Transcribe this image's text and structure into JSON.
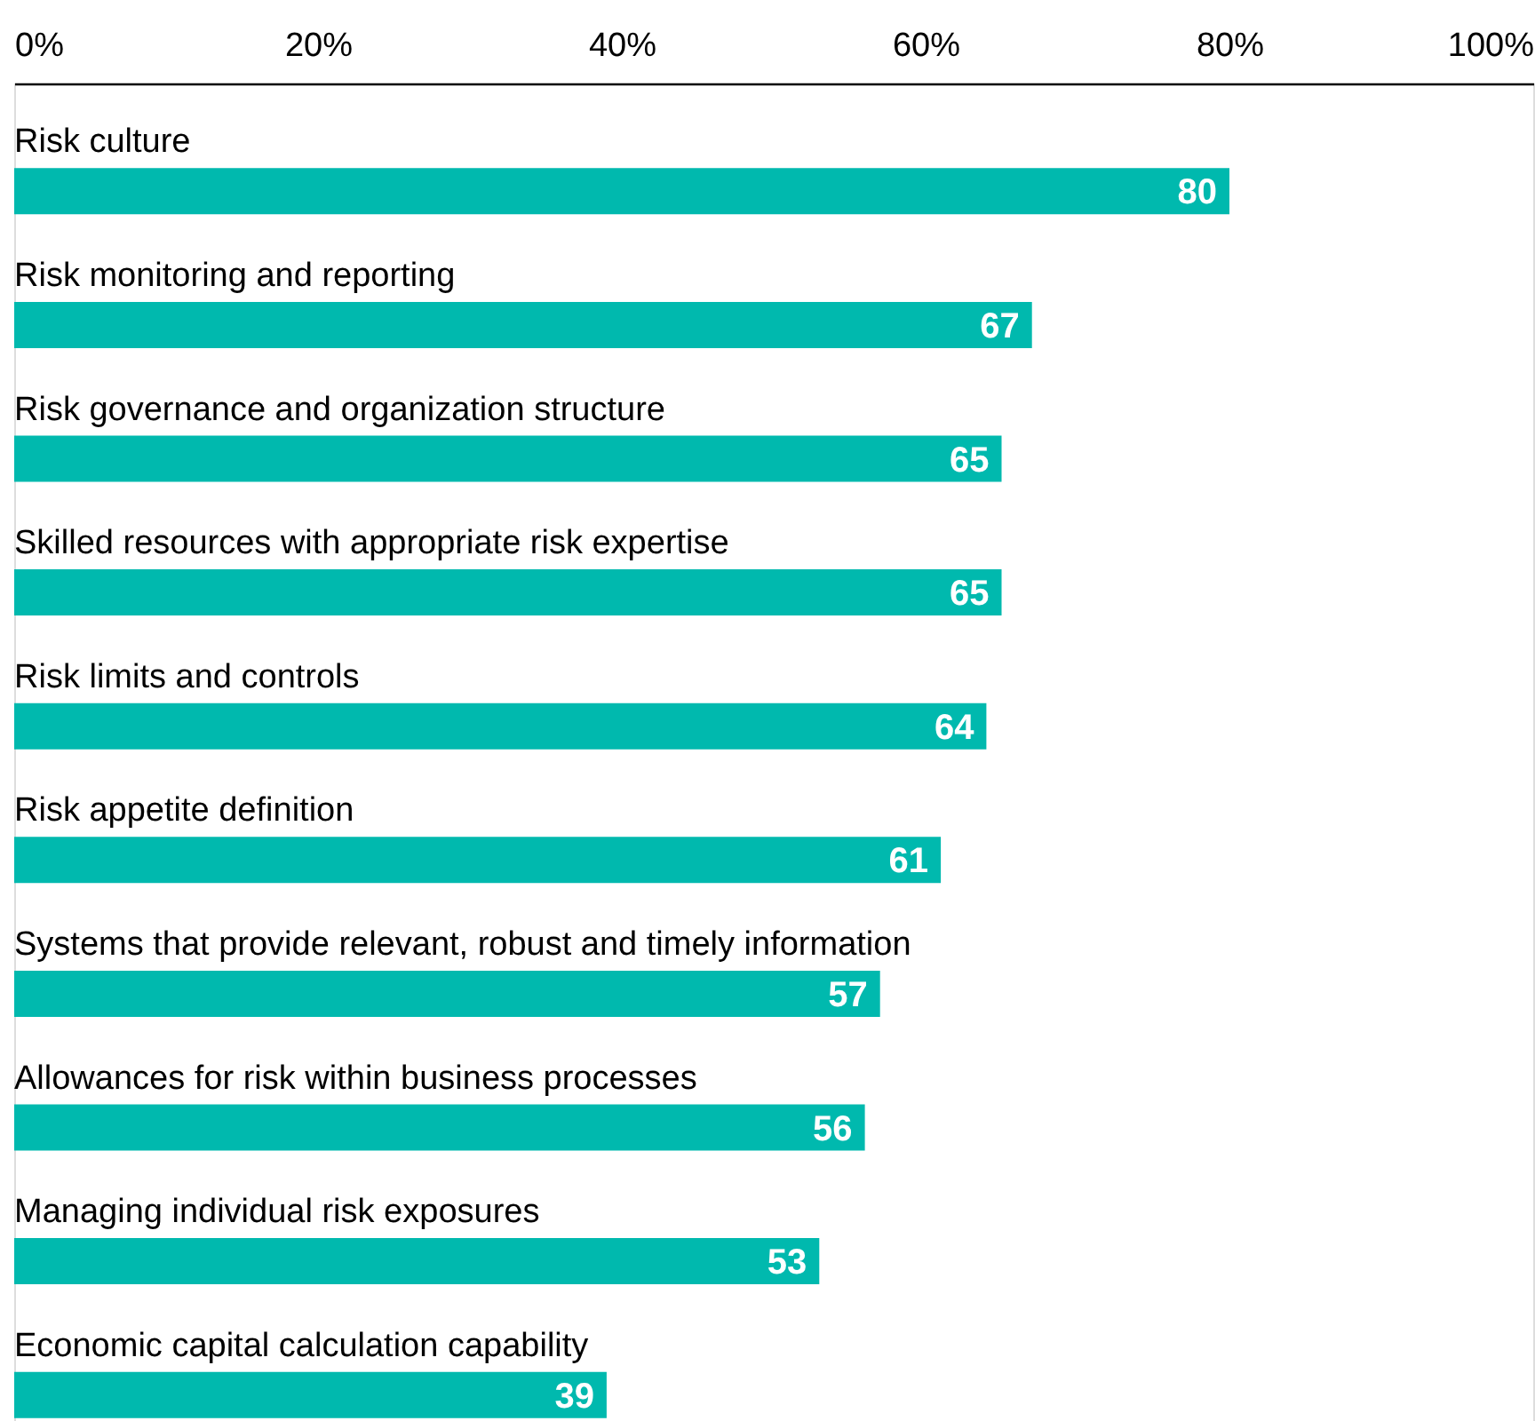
{
  "chart_data": {
    "type": "bar",
    "orientation": "horizontal",
    "categories": [
      "Risk culture",
      "Risk monitoring and reporting",
      "Risk governance and organization structure",
      "Skilled resources with appropriate risk expertise",
      "Risk limits and controls",
      "Risk appetite definition",
      "Systems that provide relevant, robust and timely information",
      "Allowances for risk within business processes",
      "Managing individual risk exposures",
      "Economic capital calculation capability"
    ],
    "values": [
      80,
      67,
      65,
      65,
      64,
      61,
      57,
      56,
      53,
      39
    ],
    "color": "#00b9ae",
    "xlim": [
      0,
      100
    ],
    "xticks": [
      {
        "value": 0,
        "label": "0%"
      },
      {
        "value": 20,
        "label": "20%"
      },
      {
        "value": 40,
        "label": "40%"
      },
      {
        "value": 60,
        "label": "60%"
      },
      {
        "value": 80,
        "label": "80%"
      },
      {
        "value": 100,
        "label": "100%"
      }
    ],
    "data_labels": true
  }
}
